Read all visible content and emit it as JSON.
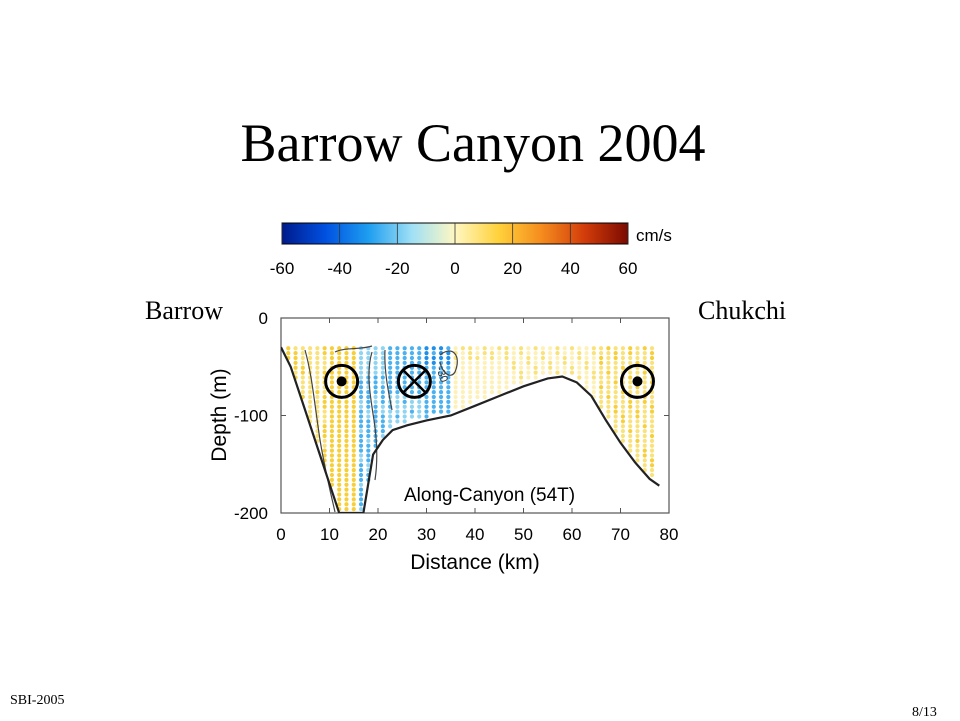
{
  "slide": {
    "title": "Barrow Canyon 2004",
    "left_label": "Barrow",
    "right_label": "Chukchi",
    "footer_left": "SBI-2005",
    "footer_right": "8/13"
  },
  "chart_data": {
    "type": "heatmap",
    "xlabel": "Distance (km)",
    "ylabel": "Depth (m)",
    "xlim": [
      0,
      80
    ],
    "ylim": [
      -200,
      0
    ],
    "xticks": [
      "0",
      "10",
      "20",
      "30",
      "40",
      "50",
      "60",
      "70",
      "80"
    ],
    "yticks": [
      "0",
      "-100",
      "-200"
    ],
    "annotation": "Along-Canyon (54T)",
    "contour_label": "-30",
    "colorbar": {
      "unit": "cm/s",
      "min": -60,
      "max": 60,
      "ticks": [
        "-60",
        "-40",
        "-20",
        "0",
        "20",
        "40",
        "60"
      ],
      "colors": [
        "#001a8c",
        "#0050e0",
        "#1e9ef0",
        "#9fe0f5",
        "#fff7c2",
        "#ffd23c",
        "#f58c1e",
        "#d23c0a",
        "#7a0a00"
      ]
    },
    "bathymetry": {
      "distance_km": [
        0,
        2,
        5,
        8,
        10,
        12,
        14,
        15.5,
        17,
        19,
        21,
        23,
        26,
        30,
        35,
        40,
        45,
        50,
        55,
        58,
        61,
        64,
        67,
        70,
        73,
        76,
        78
      ],
      "depth_m": [
        -30,
        -50,
        -95,
        -140,
        -170,
        -200,
        -200,
        -200,
        -200,
        -140,
        -125,
        -115,
        -110,
        -105,
        -100,
        -90,
        -80,
        -70,
        -62,
        -60,
        -66,
        -80,
        -105,
        -128,
        -148,
        -165,
        -172
      ]
    },
    "moorings": [
      {
        "distance_km": 12.5,
        "depth_m": -65,
        "flow": "out-of-page"
      },
      {
        "distance_km": 27.5,
        "depth_m": -65,
        "flow": "into-page"
      },
      {
        "distance_km": 73.5,
        "depth_m": -65,
        "flow": "out-of-page"
      }
    ]
  }
}
